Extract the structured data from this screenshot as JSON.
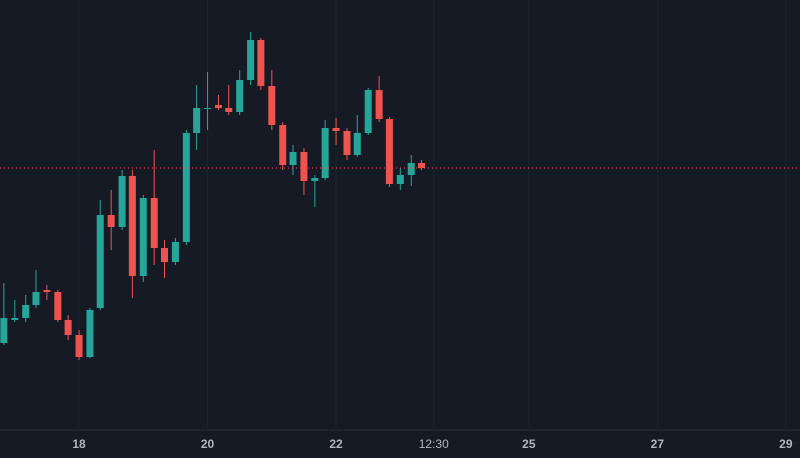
{
  "chart_data": {
    "type": "candlestick",
    "x": [
      16.83,
      17,
      17.17,
      17.33,
      17.5,
      17.67,
      17.83,
      18,
      18.17,
      18.33,
      18.5,
      18.67,
      18.83,
      19,
      19.17,
      19.33,
      19.5,
      19.67,
      19.83,
      20,
      20.17,
      20.33,
      20.5,
      20.67,
      20.83,
      21,
      21.17,
      21.33,
      21.5,
      21.67,
      21.83,
      22,
      22.17,
      22.33,
      22.5,
      22.67,
      22.83,
      23,
      23.17,
      23.33
    ],
    "open": [
      87,
      110,
      112,
      125,
      140,
      138,
      110,
      95,
      73,
      122,
      215,
      203,
      254,
      154,
      232,
      182,
      168,
      188,
      297,
      321,
      325,
      322,
      318,
      350,
      390,
      344,
      305,
      265,
      278,
      249,
      252,
      302,
      299,
      275,
      297,
      340,
      311,
      246,
      255,
      267
    ],
    "high": [
      147,
      130,
      135,
      160,
      145,
      140,
      115,
      100,
      122,
      230,
      240,
      260,
      260,
      235,
      280,
      190,
      192,
      300,
      345,
      358,
      335,
      345,
      360,
      398,
      392,
      360,
      308,
      285,
      282,
      255,
      310,
      312,
      302,
      315,
      342,
      354,
      313,
      262,
      275,
      270
    ],
    "low": [
      85,
      108,
      108,
      122,
      130,
      108,
      90,
      70,
      72,
      120,
      180,
      200,
      132,
      148,
      165,
      152,
      165,
      185,
      280,
      300,
      320,
      315,
      315,
      345,
      340,
      300,
      260,
      255,
      235,
      223,
      250,
      285,
      270,
      273,
      295,
      308,
      243,
      240,
      244,
      260
    ],
    "close": [
      112,
      112,
      125,
      138,
      138,
      110,
      95,
      73,
      120,
      215,
      203,
      254,
      154,
      232,
      182,
      168,
      188,
      297,
      322,
      322,
      322,
      318,
      350,
      390,
      344,
      305,
      265,
      278,
      249,
      252,
      302,
      299,
      275,
      297,
      340,
      311,
      246,
      255,
      267,
      262
    ],
    "up_color": "#26a69a",
    "down_color": "#ef5350",
    "price_line": 262,
    "price_line_color": "#ef5350",
    "xlim": [
      16.77,
      29.22
    ],
    "xticks": [
      18,
      20,
      22,
      {
        "value": 23.52,
        "label": "12:30"
      },
      25,
      27,
      29
    ],
    "ylim": [
      0,
      430
    ],
    "grid": true
  }
}
